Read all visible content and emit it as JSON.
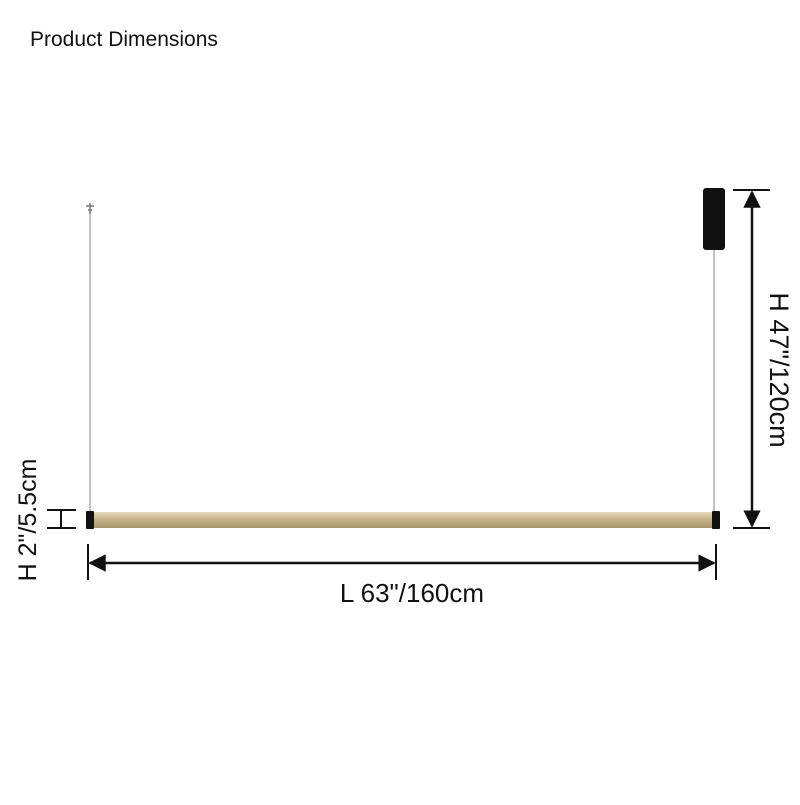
{
  "header": {
    "title": "Product Dimensions"
  },
  "dimensions": {
    "height_total": "H 47\"/120cm",
    "height_bar": "H 2\"/5.5cm",
    "length": "L 63\"/160cm"
  }
}
